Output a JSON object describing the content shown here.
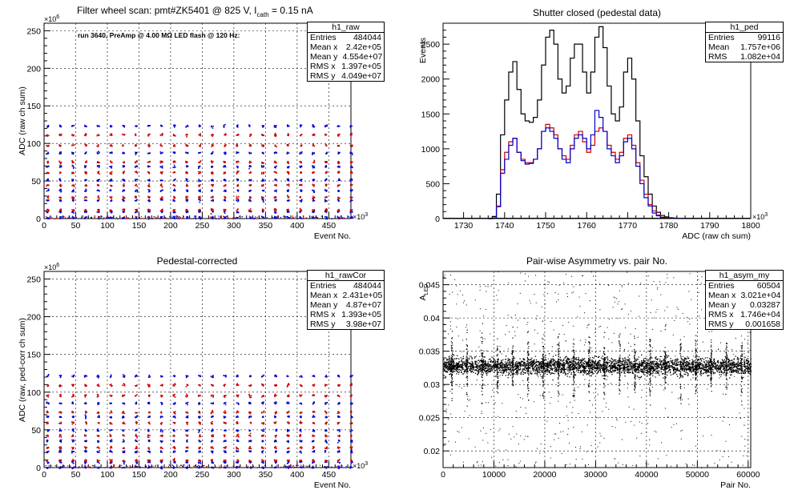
{
  "chart_data": [
    {
      "id": "raw",
      "type": "scatter",
      "title": "Filter wheel scan: pmt#ZK5401 @   825 V, I",
      "title_sub": "cath",
      "title_tail": " = 0.15 nA",
      "annotation": "run 3640, PreAmp @ 4.00 MΩ LED flash @  120 Hz:",
      "xlabel": "Event No.",
      "ylabel": "ADC (raw ch sum)",
      "xexp": "×10",
      "xexp_sup": "3",
      "yexp": "×10",
      "yexp_sup": "6",
      "xlim": [
        0,
        485
      ],
      "ylim": [
        0,
        260
      ],
      "xticks": [
        0,
        50,
        100,
        150,
        200,
        250,
        300,
        350,
        400,
        450
      ],
      "yticks": [
        0,
        50,
        100,
        150,
        200,
        250
      ],
      "grid": true,
      "log_y": false,
      "bands": [
        {
          "y": 2,
          "color": "#0000cc"
        },
        {
          "y": 10,
          "color": "#0000cc"
        },
        {
          "y": 12,
          "color": "#cc0000"
        },
        {
          "y": 25,
          "color": "#0000cc"
        },
        {
          "y": 29,
          "color": "#cc0000"
        },
        {
          "y": 38,
          "color": "#0000cc"
        },
        {
          "y": 45,
          "color": "#cc0000"
        },
        {
          "y": 52,
          "color": "#0000cc"
        },
        {
          "y": 62,
          "color": "#cc0000"
        },
        {
          "y": 70,
          "color": "#0000cc"
        },
        {
          "y": 76,
          "color": "#cc0000"
        },
        {
          "y": 88,
          "color": "#0000cc"
        },
        {
          "y": 98,
          "color": "#cc0000"
        },
        {
          "y": 112,
          "color": "#cc0000"
        },
        {
          "y": 124,
          "color": "#0000cc"
        }
      ],
      "band_period": 20,
      "stats": {
        "name": "h1_raw",
        "rows": [
          {
            "label": "Entries",
            "value": "484044"
          },
          {
            "label": "Mean x",
            "value": "2.42e+05"
          },
          {
            "label": "Mean y",
            "value": "4.554e+07"
          },
          {
            "label": "RMS x",
            "value": "1.397e+05"
          },
          {
            "label": "RMS y",
            "value": "4.049e+07"
          }
        ]
      }
    },
    {
      "id": "ped",
      "type": "line",
      "title": "Shutter closed (pedestal data)",
      "xlabel": "ADC (raw ch sum)",
      "ylabel": "Events",
      "xexp": "×10",
      "xexp_sup": "3",
      "xlim": [
        1725,
        1800
      ],
      "ylim": [
        0,
        2800
      ],
      "xticks": [
        1730,
        1740,
        1750,
        1760,
        1770,
        1780,
        1790,
        1800
      ],
      "yticks": [
        0,
        500,
        1000,
        1500,
        2000,
        2500
      ],
      "grid": false,
      "step": true,
      "x_start": 1736,
      "x_step": 1,
      "series": [
        {
          "color": "#000000",
          "values": [
            0,
            30,
            350,
            1200,
            1700,
            2100,
            2250,
            1850,
            1500,
            1400,
            1380,
            1450,
            1700,
            2200,
            2600,
            2700,
            2500,
            2000,
            1800,
            1900,
            2300,
            2500,
            2500,
            2100,
            1800,
            2100,
            2600,
            2750,
            2450,
            1900,
            1500,
            1400,
            1600,
            2100,
            2300,
            2000,
            1400,
            900,
            600,
            350,
            180,
            90,
            45,
            25,
            12,
            8,
            5
          ]
        },
        {
          "color": "#cc0000",
          "values": [
            0,
            10,
            180,
            700,
            950,
            1100,
            1150,
            950,
            850,
            800,
            800,
            850,
            1000,
            1250,
            1350,
            1300,
            1200,
            1000,
            900,
            850,
            1050,
            1200,
            1250,
            1100,
            950,
            1050,
            1250,
            1300,
            1250,
            1050,
            950,
            850,
            950,
            1150,
            1200,
            1050,
            800,
            550,
            350,
            200,
            110,
            50,
            20,
            10,
            5,
            3,
            2
          ]
        },
        {
          "color": "#0000cc",
          "values": [
            0,
            10,
            170,
            650,
            850,
            1050,
            1150,
            950,
            830,
            780,
            790,
            850,
            1000,
            1250,
            1300,
            1250,
            1150,
            1000,
            850,
            800,
            1000,
            1150,
            1200,
            1150,
            1000,
            1200,
            1550,
            1450,
            1250,
            1000,
            900,
            800,
            900,
            1100,
            1150,
            1000,
            750,
            500,
            300,
            180,
            80,
            40,
            15,
            8,
            4,
            2,
            1
          ]
        }
      ],
      "stats": {
        "name": "h1_ped",
        "rows": [
          {
            "label": "Entries",
            "value": "99116"
          },
          {
            "label": "Mean",
            "value": "1.757e+06"
          },
          {
            "label": "RMS",
            "value": "1.082e+04"
          }
        ]
      }
    },
    {
      "id": "rawCor",
      "type": "scatter",
      "title": "Pedestal-corrected",
      "xlabel": "Event No.",
      "ylabel": "ADC (raw, ped-corr ch sum)",
      "xexp": "×10",
      "xexp_sup": "3",
      "yexp": "×10",
      "yexp_sup": "6",
      "xlim": [
        0,
        485
      ],
      "ylim": [
        0,
        260
      ],
      "xticks": [
        0,
        50,
        100,
        150,
        200,
        250,
        300,
        350,
        400,
        450
      ],
      "yticks": [
        0,
        50,
        100,
        150,
        200,
        250
      ],
      "grid": true,
      "bands": [
        {
          "y": 1,
          "color": "#0000cc"
        },
        {
          "y": 8,
          "color": "#0000cc"
        },
        {
          "y": 10,
          "color": "#cc0000"
        },
        {
          "y": 22,
          "color": "#0000cc"
        },
        {
          "y": 27,
          "color": "#cc0000"
        },
        {
          "y": 36,
          "color": "#0000cc"
        },
        {
          "y": 43,
          "color": "#cc0000"
        },
        {
          "y": 50,
          "color": "#0000cc"
        },
        {
          "y": 60,
          "color": "#cc0000"
        },
        {
          "y": 68,
          "color": "#0000cc"
        },
        {
          "y": 74,
          "color": "#cc0000"
        },
        {
          "y": 86,
          "color": "#0000cc"
        },
        {
          "y": 96,
          "color": "#cc0000"
        },
        {
          "y": 110,
          "color": "#cc0000"
        },
        {
          "y": 122,
          "color": "#0000cc"
        }
      ],
      "band_period": 20,
      "stats": {
        "name": "h1_rawCor",
        "rows": [
          {
            "label": "Entries",
            "value": "484044"
          },
          {
            "label": "Mean x",
            "value": "2.431e+05"
          },
          {
            "label": "Mean y",
            "value": "4.87e+07"
          },
          {
            "label": "RMS x",
            "value": "1.393e+05"
          },
          {
            "label": "RMS y",
            "value": "3.98e+07"
          }
        ]
      }
    },
    {
      "id": "asym",
      "type": "scatter",
      "title": "Pair-wise Asymmetry vs. pair No.",
      "xlabel": "Pair No.",
      "ylabel": "A",
      "ylabel_sub": "LED",
      "xlim": [
        0,
        60500
      ],
      "ylim": [
        0.0175,
        0.047
      ],
      "xticks": [
        0,
        10000,
        20000,
        30000,
        40000,
        50000,
        60000
      ],
      "yticks": [
        0.02,
        0.025,
        0.03,
        0.035,
        0.04,
        0.045
      ],
      "ytick_labels": [
        "0.02",
        "0.025",
        "0.03",
        "0.035",
        "0.04",
        "0.045"
      ],
      "grid": true,
      "center": 0.0328,
      "spread": 0.0006,
      "spike_period": 3000,
      "stats": {
        "name": "h1_asym_my",
        "rows": [
          {
            "label": "Entries",
            "value": "60504"
          },
          {
            "label": "Mean x",
            "value": "3.021e+04"
          },
          {
            "label": "Mean y",
            "value": "0.03287"
          },
          {
            "label": "RMS x",
            "value": "1.746e+04"
          },
          {
            "label": "RMS y",
            "value": "0.001658"
          }
        ]
      }
    }
  ]
}
